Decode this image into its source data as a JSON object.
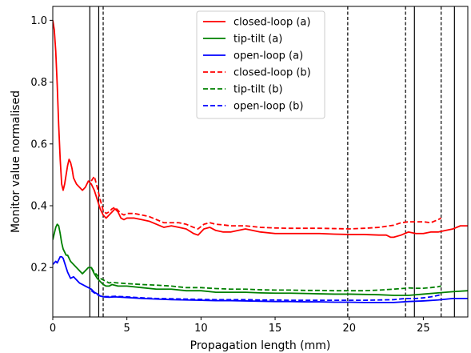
{
  "chart_data": {
    "type": "line",
    "xlabel": "Propagation length (mm)",
    "ylabel": "Monitor value normalised",
    "xlim": [
      0,
      28
    ],
    "ylim": [
      0.04,
      1.045
    ],
    "x_ticks": [
      0,
      5,
      10,
      15,
      20,
      25
    ],
    "y_ticks": [
      0.2,
      0.4,
      0.6,
      0.8,
      1.0
    ],
    "x_tick_labels": [
      "0",
      "5",
      "10",
      "15",
      "20",
      "25"
    ],
    "y_tick_labels": [
      "0.2",
      "0.4",
      "0.6",
      "0.8",
      "1.0"
    ],
    "grid": false,
    "legend_position": "top-center",
    "vertical_lines_solid": [
      2.5,
      3.1,
      24.4,
      27.1
    ],
    "vertical_lines_dashed": [
      3.4,
      19.9,
      23.8,
      26.2
    ],
    "series": [
      {
        "name": "closed-loop (a)",
        "color": "#ff0000",
        "style": "solid",
        "x": [
          0,
          0.1,
          0.2,
          0.3,
          0.4,
          0.5,
          0.6,
          0.7,
          0.8,
          0.9,
          1.0,
          1.1,
          1.2,
          1.3,
          1.4,
          1.6,
          1.8,
          2.0,
          2.2,
          2.4,
          2.6,
          2.8,
          3.0,
          3.2,
          3.4,
          3.6,
          3.8,
          4.0,
          4.2,
          4.4,
          4.6,
          4.8,
          5,
          5.5,
          6,
          6.5,
          7,
          7.5,
          8,
          8.5,
          9,
          9.5,
          9.8,
          10.2,
          10.6,
          11,
          11.5,
          12,
          12.5,
          13,
          14,
          15,
          16,
          17,
          18,
          19,
          20,
          21,
          22,
          22.5,
          22.8,
          23,
          23.5,
          24,
          24.5,
          25,
          25.5,
          26,
          26.5,
          27,
          27.5,
          28
        ],
        "y": [
          1.0,
          0.97,
          0.9,
          0.79,
          0.66,
          0.55,
          0.47,
          0.45,
          0.47,
          0.5,
          0.53,
          0.55,
          0.54,
          0.52,
          0.49,
          0.47,
          0.46,
          0.45,
          0.46,
          0.48,
          0.47,
          0.45,
          0.42,
          0.39,
          0.37,
          0.36,
          0.37,
          0.38,
          0.39,
          0.38,
          0.36,
          0.355,
          0.36,
          0.36,
          0.355,
          0.35,
          0.34,
          0.33,
          0.335,
          0.33,
          0.325,
          0.31,
          0.305,
          0.325,
          0.33,
          0.32,
          0.315,
          0.315,
          0.32,
          0.325,
          0.315,
          0.31,
          0.31,
          0.31,
          0.31,
          0.308,
          0.307,
          0.307,
          0.305,
          0.305,
          0.298,
          0.298,
          0.305,
          0.315,
          0.31,
          0.31,
          0.315,
          0.315,
          0.32,
          0.325,
          0.335,
          0.335
        ]
      },
      {
        "name": "tip-tilt (a)",
        "color": "#008000",
        "style": "solid",
        "x": [
          0,
          0.1,
          0.2,
          0.3,
          0.4,
          0.5,
          0.6,
          0.7,
          0.8,
          0.9,
          1.0,
          1.2,
          1.4,
          1.6,
          1.8,
          2.0,
          2.2,
          2.4,
          2.6,
          2.8,
          3.0,
          3.2,
          3.4,
          3.6,
          3.8,
          4.0,
          4.4,
          5,
          6,
          7,
          8,
          9,
          10,
          11,
          12,
          13,
          14,
          15,
          16,
          17,
          18,
          19,
          20,
          21,
          22,
          23,
          24,
          25,
          26,
          27,
          28
        ],
        "y": [
          0.29,
          0.31,
          0.33,
          0.34,
          0.335,
          0.31,
          0.28,
          0.26,
          0.25,
          0.24,
          0.24,
          0.22,
          0.21,
          0.2,
          0.19,
          0.18,
          0.19,
          0.2,
          0.2,
          0.18,
          0.165,
          0.155,
          0.145,
          0.14,
          0.14,
          0.145,
          0.14,
          0.14,
          0.135,
          0.13,
          0.13,
          0.125,
          0.125,
          0.12,
          0.12,
          0.12,
          0.118,
          0.117,
          0.117,
          0.116,
          0.115,
          0.114,
          0.114,
          0.113,
          0.112,
          0.11,
          0.11,
          0.114,
          0.118,
          0.122,
          0.125
        ]
      },
      {
        "name": "open-loop (a)",
        "color": "#0000ff",
        "style": "solid",
        "x": [
          0,
          0.1,
          0.2,
          0.3,
          0.4,
          0.5,
          0.6,
          0.7,
          0.8,
          0.9,
          1.0,
          1.2,
          1.4,
          1.6,
          1.8,
          2.0,
          2.2,
          2.4,
          2.6,
          2.8,
          3.0,
          3.2,
          3.4,
          3.8,
          4.2,
          5,
          6,
          7,
          8,
          9,
          10,
          11,
          12,
          13,
          14,
          15,
          16,
          17,
          18,
          19,
          20,
          21,
          22,
          23,
          24,
          25,
          26,
          27,
          28
        ],
        "y": [
          0.21,
          0.215,
          0.22,
          0.215,
          0.225,
          0.235,
          0.235,
          0.23,
          0.215,
          0.2,
          0.185,
          0.165,
          0.17,
          0.16,
          0.15,
          0.145,
          0.14,
          0.135,
          0.13,
          0.12,
          0.115,
          0.108,
          0.105,
          0.104,
          0.105,
          0.103,
          0.1,
          0.098,
          0.096,
          0.095,
          0.094,
          0.093,
          0.093,
          0.092,
          0.091,
          0.09,
          0.09,
          0.089,
          0.089,
          0.088,
          0.088,
          0.087,
          0.087,
          0.087,
          0.09,
          0.092,
          0.095,
          0.1,
          0.1
        ]
      },
      {
        "name": "closed-loop (b)",
        "color": "#ff0000",
        "style": "dashed",
        "x": [
          2.6,
          2.8,
          3.0,
          3.2,
          3.4,
          3.6,
          3.8,
          4.0,
          4.2,
          4.4,
          4.6,
          4.8,
          5,
          5.5,
          6,
          6.5,
          7,
          7.5,
          8,
          8.5,
          9,
          9.5,
          9.8,
          10.2,
          10.6,
          11,
          11.5,
          12,
          12.5,
          13,
          14,
          15,
          16,
          17,
          18,
          19,
          20,
          21,
          22,
          23,
          23.5,
          24,
          24.5,
          25,
          25.5,
          26,
          26.2
        ],
        "y": [
          0.48,
          0.495,
          0.46,
          0.42,
          0.385,
          0.375,
          0.38,
          0.39,
          0.395,
          0.385,
          0.375,
          0.37,
          0.375,
          0.375,
          0.37,
          0.365,
          0.355,
          0.345,
          0.345,
          0.345,
          0.34,
          0.33,
          0.325,
          0.34,
          0.345,
          0.34,
          0.338,
          0.335,
          0.335,
          0.335,
          0.33,
          0.328,
          0.327,
          0.327,
          0.327,
          0.326,
          0.325,
          0.327,
          0.33,
          0.337,
          0.345,
          0.348,
          0.348,
          0.348,
          0.345,
          0.355,
          0.36
        ]
      },
      {
        "name": "tip-tilt (b)",
        "color": "#008000",
        "style": "dashed",
        "x": [
          2.6,
          2.8,
          3.0,
          3.2,
          3.4,
          3.6,
          3.8,
          4.0,
          4.4,
          5,
          6,
          7,
          8,
          9,
          10,
          11,
          12,
          13,
          14,
          15,
          16,
          17,
          18,
          19,
          20,
          21,
          22,
          23,
          23.8,
          24,
          24.5,
          25,
          25.5,
          26,
          26.2
        ],
        "y": [
          0.2,
          0.185,
          0.175,
          0.165,
          0.16,
          0.155,
          0.15,
          0.152,
          0.15,
          0.148,
          0.145,
          0.143,
          0.14,
          0.135,
          0.135,
          0.132,
          0.13,
          0.13,
          0.128,
          0.127,
          0.127,
          0.126,
          0.126,
          0.125,
          0.125,
          0.125,
          0.127,
          0.13,
          0.133,
          0.134,
          0.133,
          0.133,
          0.135,
          0.138,
          0.14
        ]
      },
      {
        "name": "open-loop (b)",
        "color": "#0000ff",
        "style": "dashed",
        "x": [
          2.6,
          2.8,
          3.0,
          3.2,
          3.4,
          3.8,
          4.2,
          5,
          6,
          7,
          8,
          9,
          10,
          11,
          12,
          13,
          14,
          15,
          16,
          17,
          18,
          19,
          20,
          21,
          22,
          23,
          23.8,
          24,
          24.5,
          25,
          25.5,
          26,
          26.2
        ],
        "y": [
          0.125,
          0.118,
          0.112,
          0.108,
          0.106,
          0.106,
          0.107,
          0.105,
          0.102,
          0.1,
          0.099,
          0.098,
          0.097,
          0.096,
          0.096,
          0.096,
          0.095,
          0.095,
          0.094,
          0.094,
          0.094,
          0.094,
          0.094,
          0.094,
          0.095,
          0.096,
          0.1,
          0.1,
          0.1,
          0.102,
          0.105,
          0.11,
          0.113
        ]
      }
    ]
  }
}
